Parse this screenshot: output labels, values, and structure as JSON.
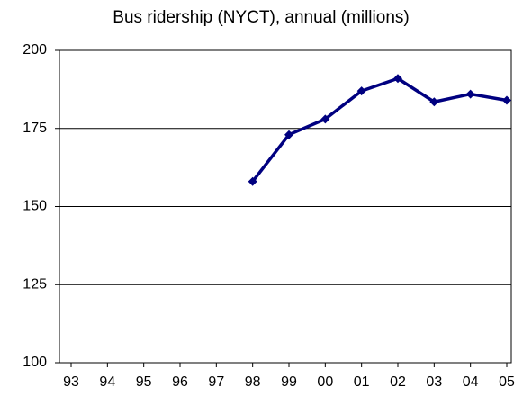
{
  "chart_data": {
    "type": "line",
    "title": "Bus ridership (NYCT), annual (millions)",
    "categories": [
      "93",
      "94",
      "95",
      "96",
      "97",
      "98",
      "99",
      "00",
      "01",
      "02",
      "03",
      "04",
      "05"
    ],
    "series": [
      {
        "name": "Bus ridership",
        "color": "#000080",
        "values": [
          null,
          null,
          null,
          null,
          null,
          158,
          173,
          178,
          187,
          191,
          183.5,
          186,
          184
        ]
      }
    ],
    "ylim": [
      100,
      200
    ],
    "yticks": [
      100,
      125,
      150,
      175,
      200
    ],
    "grid": true
  }
}
